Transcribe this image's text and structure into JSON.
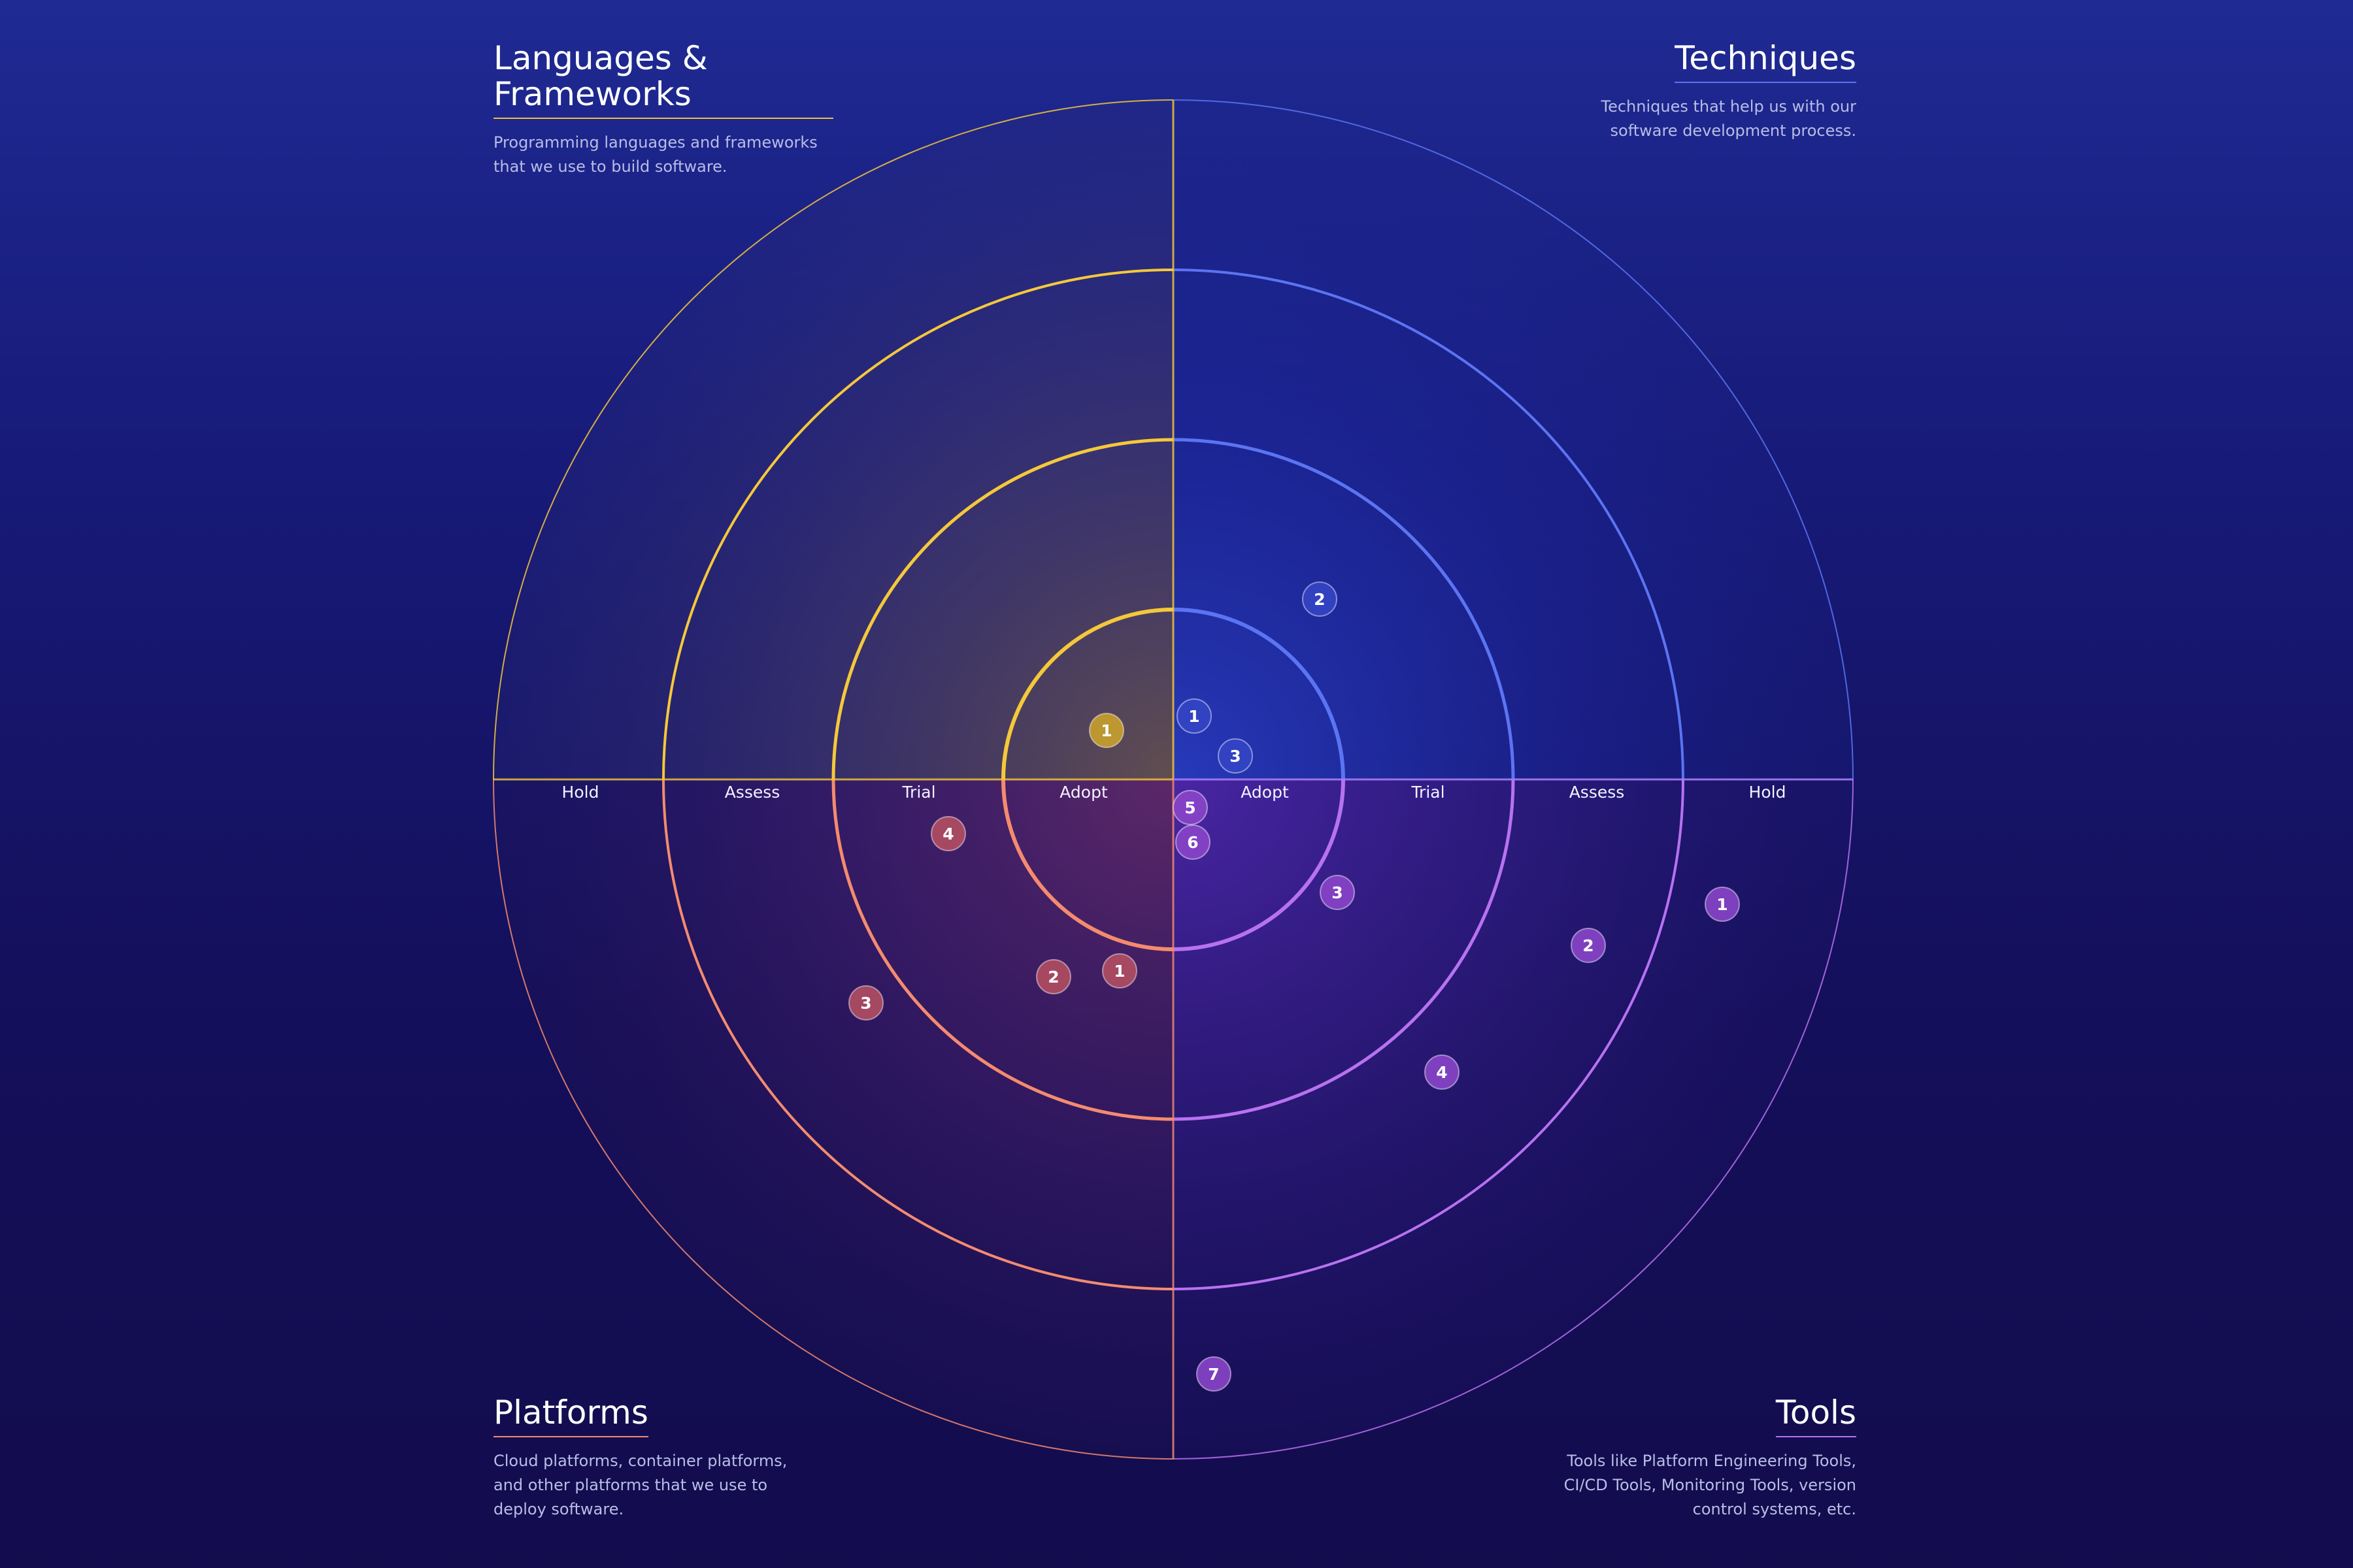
{
  "quadrants": {
    "languages": {
      "title": "Languages & Frameworks",
      "description": "Programming languages and frameworks that we use to build software.",
      "color": "#f5c83a"
    },
    "techniques": {
      "title": "Techniques",
      "description": "Techniques that help us with our software development process.",
      "color": "#5b74f2"
    },
    "platforms": {
      "title": "Platforms",
      "description": "Cloud platforms, container platforms, and other platforms that we use to deploy software.",
      "color": "#f48b6f"
    },
    "tools": {
      "title": "Tools",
      "description": "Tools like Platform Engineering Tools, CI/CD Tools, Monitoring Tools, version control systems, etc.",
      "color": "#b772f0"
    }
  },
  "rings_left": [
    "Hold",
    "Assess",
    "Trial",
    "Adopt"
  ],
  "rings_right": [
    "Adopt",
    "Trial",
    "Assess",
    "Hold"
  ],
  "blips": {
    "languages": [
      {
        "label": "1",
        "color": "#c9a02c"
      }
    ],
    "techniques": [
      {
        "label": "1",
        "color": "#3344c4"
      },
      {
        "label": "2",
        "color": "#3344c4"
      },
      {
        "label": "3",
        "color": "#3344c4"
      }
    ],
    "platforms": [
      {
        "label": "1",
        "color": "#b24e62"
      },
      {
        "label": "2",
        "color": "#b24e62"
      },
      {
        "label": "3",
        "color": "#b24e62"
      },
      {
        "label": "4",
        "color": "#b24e62"
      }
    ],
    "tools": [
      {
        "label": "1",
        "color": "#8a45c9"
      },
      {
        "label": "2",
        "color": "#8a45c9"
      },
      {
        "label": "3",
        "color": "#8a45c9"
      },
      {
        "label": "4",
        "color": "#8a45c9"
      },
      {
        "label": "5",
        "color": "#8a45c9"
      },
      {
        "label": "6",
        "color": "#8a45c9"
      },
      {
        "label": "7",
        "color": "#8a45c9"
      }
    ]
  }
}
